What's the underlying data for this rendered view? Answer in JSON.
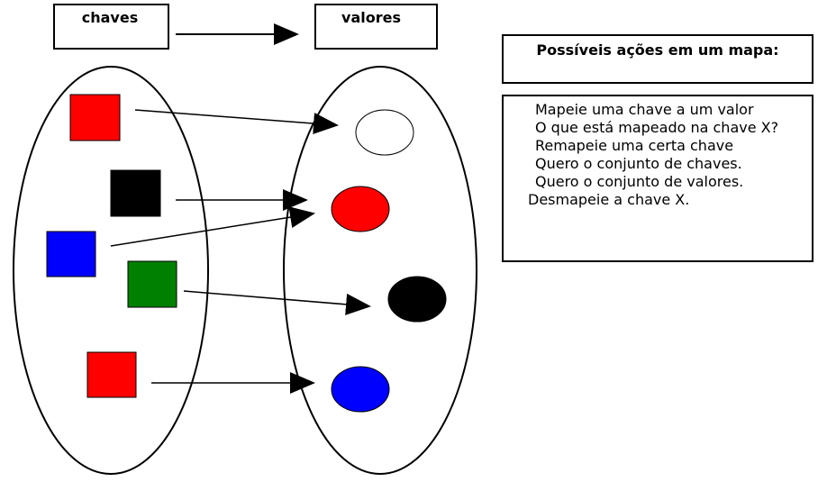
{
  "header": {
    "keys_label": "chaves",
    "values_label": "valores"
  },
  "actions": {
    "title": "Possíveis ações em um mapa:",
    "items": [
      "Mapeie uma chave a um valor",
      "O que está mapeado na chave X?",
      "Remapeie uma certa chave",
      "Quero o conjunto de chaves.",
      "Quero o conjunto de valores.",
      "Desmapeie a chave X."
    ]
  },
  "keys": [
    {
      "name": "key-red-1",
      "color": "#ff0000"
    },
    {
      "name": "key-black",
      "color": "#000000"
    },
    {
      "name": "key-blue",
      "color": "#0000ff"
    },
    {
      "name": "key-green",
      "color": "#008000"
    },
    {
      "name": "key-red-2",
      "color": "#ff0000"
    }
  ],
  "values": [
    {
      "name": "value-white",
      "color": "#ffffff"
    },
    {
      "name": "value-red",
      "color": "#ff0000"
    },
    {
      "name": "value-black",
      "color": "#000000"
    },
    {
      "name": "value-blue",
      "color": "#0000ff"
    }
  ]
}
